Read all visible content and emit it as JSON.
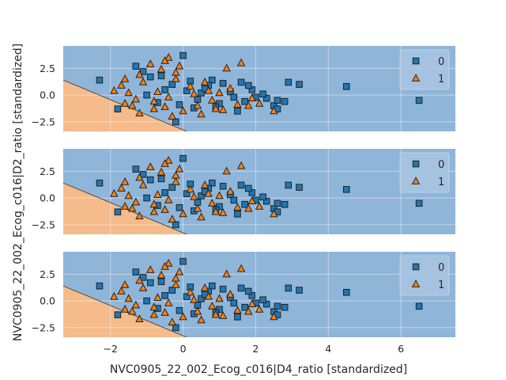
{
  "chart_data": {
    "type": "scatter",
    "subtype": "decision-region",
    "xlabel": "NVC0905_22_002_Ecog_c016|D4_ratio [standardized]",
    "ylabel": "NVC0905_22_002_Ecog_c016|D2_ratio [standardized]",
    "xlim": [
      -3.3,
      7.5
    ],
    "ylim": [
      -3.4,
      4.6
    ],
    "x_ticks": [
      -2,
      0,
      2,
      4,
      6
    ],
    "x_tick_labels": [
      "−2",
      "0",
      "2",
      "4",
      "6"
    ],
    "y_ticks": [
      2.5,
      0.0,
      -2.5
    ],
    "y_tick_labels": [
      "2.5",
      "0.0",
      "−2.5"
    ],
    "grid": true,
    "legend_position": "top-right",
    "legend": [
      {
        "label": "0",
        "marker": "square",
        "color": "#1f77b4"
      },
      {
        "label": "1",
        "marker": "triangle",
        "color": "#ff7f0e"
      }
    ],
    "region_colors": {
      "class_0": "#8fb5d8",
      "class_1": "#f5bb8a"
    },
    "boundary_line": {
      "x1": -3.3,
      "y1": 1.4,
      "x2": 0.1,
      "y2": -3.4
    },
    "panels": 3,
    "series": [
      {
        "name": "0",
        "marker": "square",
        "points": [
          [
            -2.3,
            1.4
          ],
          [
            -1.8,
            -1.3
          ],
          [
            -1.3,
            2.7
          ],
          [
            -1.1,
            2.2
          ],
          [
            -0.9,
            1.7
          ],
          [
            0.0,
            3.7
          ],
          [
            -0.2,
            -2.5
          ],
          [
            0.2,
            1.3
          ],
          [
            1.6,
            1.2
          ],
          [
            0.8,
            1.4
          ],
          [
            2.5,
            -1.0
          ],
          [
            2.6,
            -0.5
          ],
          [
            2.0,
            -0.2
          ],
          [
            3.2,
            1.0
          ],
          [
            2.9,
            1.2
          ],
          [
            4.5,
            0.8
          ],
          [
            6.5,
            -0.5
          ],
          [
            1.7,
            -0.6
          ],
          [
            -0.5,
            0.5
          ],
          [
            0.5,
            0.2
          ],
          [
            1.0,
            -0.8
          ],
          [
            1.3,
            0.3
          ],
          [
            0.3,
            -1.2
          ],
          [
            -0.7,
            -0.7
          ],
          [
            1.9,
            0.5
          ],
          [
            2.3,
            -0.3
          ],
          [
            0.7,
            0.9
          ],
          [
            -0.3,
            1.0
          ],
          [
            1.5,
            -1.5
          ],
          [
            2.2,
            0.1
          ],
          [
            -1.0,
            0.0
          ],
          [
            0.1,
            0.4
          ],
          [
            1.1,
            1.1
          ],
          [
            0.4,
            -0.4
          ],
          [
            2.6,
            -1.3
          ],
          [
            -0.6,
            1.8
          ],
          [
            1.8,
            0.9
          ],
          [
            0.9,
            -1.1
          ],
          [
            -0.1,
            -0.9
          ],
          [
            1.4,
            -0.2
          ],
          [
            2.8,
            -0.6
          ],
          [
            0.6,
            0.6
          ]
        ]
      },
      {
        "name": "1",
        "marker": "triangle",
        "points": [
          [
            -1.6,
            1.5
          ],
          [
            -0.4,
            3.5
          ],
          [
            -0.5,
            3.2
          ],
          [
            1.2,
            2.5
          ],
          [
            1.6,
            3.0
          ],
          [
            -0.8,
            -1.3
          ],
          [
            -1.2,
            -1.7
          ],
          [
            -0.3,
            -2.0
          ],
          [
            0.5,
            -1.8
          ],
          [
            -1.5,
            0.2
          ],
          [
            -1.7,
            0.9
          ],
          [
            -0.9,
            2.9
          ],
          [
            -0.6,
            2.4
          ],
          [
            0.9,
            -1.3
          ],
          [
            1.8,
            -1.0
          ],
          [
            2.5,
            -1.5
          ],
          [
            -1.3,
            -0.4
          ],
          [
            -0.4,
            -0.2
          ],
          [
            0.2,
            0.8
          ],
          [
            0.8,
            -0.5
          ],
          [
            1.3,
            0.6
          ],
          [
            -0.2,
            1.5
          ],
          [
            -1.1,
            1.2
          ],
          [
            0.4,
            -1.0
          ],
          [
            1.0,
            0.2
          ],
          [
            -0.7,
            0.3
          ],
          [
            -1.4,
            -1.0
          ],
          [
            0.0,
            -1.5
          ],
          [
            1.5,
            -0.9
          ],
          [
            2.1,
            -0.8
          ],
          [
            -0.2,
            2.1
          ],
          [
            0.6,
            1.2
          ],
          [
            -1.9,
            0.4
          ],
          [
            -0.8,
            -0.6
          ],
          [
            1.9,
            -0.3
          ],
          [
            0.3,
            0.1
          ],
          [
            -1.2,
            1.9
          ],
          [
            -0.5,
            -1.1
          ],
          [
            1.1,
            -1.4
          ],
          [
            0.7,
            0.4
          ],
          [
            -0.1,
            2.7
          ],
          [
            -1.6,
            -0.8
          ]
        ]
      }
    ]
  }
}
